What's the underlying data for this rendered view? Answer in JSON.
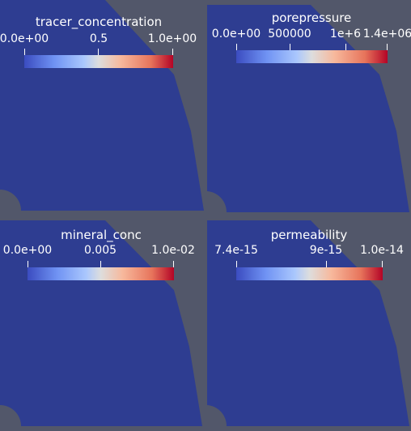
{
  "colors": {
    "background": "#52576a",
    "domain_fill": "#2e3d91",
    "colormap_low": "#3b4cc0",
    "colormap_mid": "#dddddd",
    "colormap_high": "#b40426"
  },
  "views": [
    {
      "title": "tracer_concentration",
      "labels": [
        "0.0e+00",
        "0.5",
        "1.0e+00"
      ]
    },
    {
      "title": "porepressure",
      "labels": [
        "0.0e+00",
        "500000",
        "1e+6",
        "1.4e+06"
      ]
    },
    {
      "title": "mineral_conc",
      "labels": [
        "0.0e+00",
        "0.005",
        "1.0e-02"
      ]
    },
    {
      "title": "permeability",
      "labels": [
        "7.4e-15",
        "9e-15",
        "1.0e-14"
      ]
    }
  ]
}
